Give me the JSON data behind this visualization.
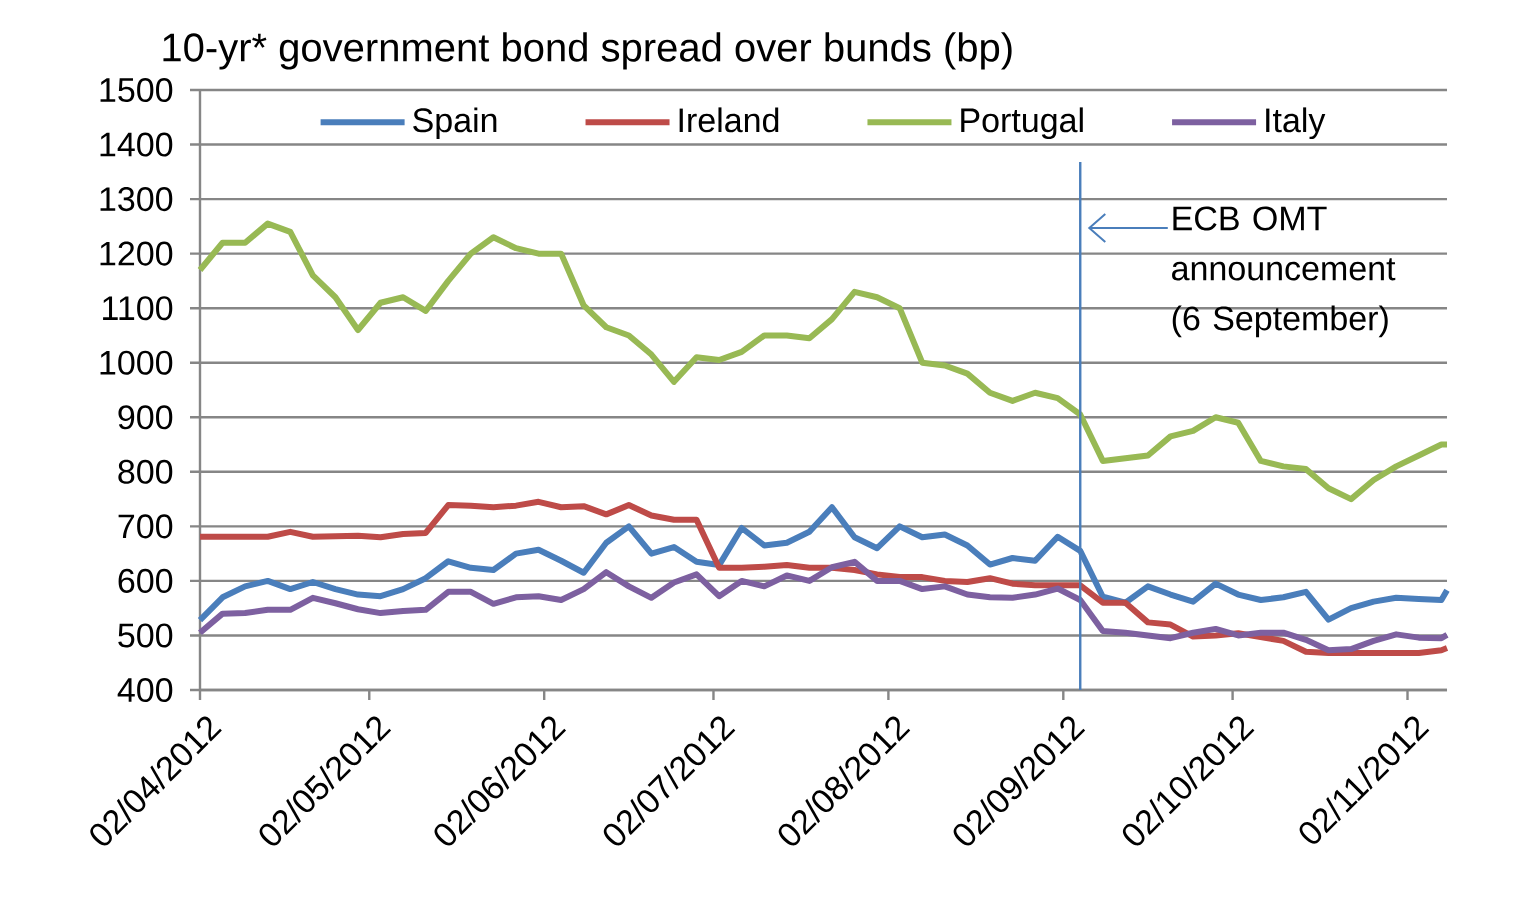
{
  "chart_data": {
    "type": "line",
    "title": "10-yr* government bond spread over bunds (bp)",
    "x": [
      "2012-04-02",
      "2012-04-06",
      "2012-04-10",
      "2012-04-14",
      "2012-04-18",
      "2012-04-22",
      "2012-04-26",
      "2012-04-30",
      "2012-05-04",
      "2012-05-08",
      "2012-05-12",
      "2012-05-16",
      "2012-05-20",
      "2012-05-24",
      "2012-05-28",
      "2012-06-01",
      "2012-06-05",
      "2012-06-09",
      "2012-06-13",
      "2012-06-17",
      "2012-06-21",
      "2012-06-25",
      "2012-06-29",
      "2012-07-03",
      "2012-07-07",
      "2012-07-11",
      "2012-07-15",
      "2012-07-19",
      "2012-07-23",
      "2012-07-27",
      "2012-07-31",
      "2012-08-04",
      "2012-08-08",
      "2012-08-12",
      "2012-08-16",
      "2012-08-20",
      "2012-08-24",
      "2012-08-28",
      "2012-09-01",
      "2012-09-05",
      "2012-09-09",
      "2012-09-13",
      "2012-09-17",
      "2012-09-21",
      "2012-09-25",
      "2012-09-29",
      "2012-10-03",
      "2012-10-07",
      "2012-10-11",
      "2012-10-15",
      "2012-10-19",
      "2012-10-23",
      "2012-10-27",
      "2012-10-31",
      "2012-11-04",
      "2012-11-08",
      "2012-11-09"
    ],
    "series": [
      {
        "name": "Spain",
        "color": "#4a7ebb",
        "values": [
          528,
          570,
          590,
          600,
          585,
          598,
          585,
          575,
          572,
          585,
          605,
          636,
          624,
          620,
          650,
          657,
          637,
          615,
          670,
          700,
          650,
          662,
          635,
          629,
          697,
          665,
          670,
          690,
          735,
          680,
          660,
          700,
          680,
          685,
          665,
          630,
          642,
          637,
          681,
          655,
          571,
          560,
          590,
          575,
          562,
          595,
          575,
          565,
          570,
          580,
          529,
          550,
          562,
          569,
          567,
          565,
          583
        ]
      },
      {
        "name": "Ireland",
        "color": "#be4b48",
        "values": [
          681,
          681,
          681,
          681,
          690,
          681,
          682,
          683,
          680,
          686,
          688,
          739,
          738,
          735,
          738,
          745,
          735,
          737,
          722,
          739,
          720,
          712,
          712,
          624,
          624,
          626,
          629,
          624,
          624,
          620,
          612,
          607,
          607,
          600,
          598,
          605,
          595,
          592,
          592,
          592,
          560,
          560,
          524,
          520,
          498,
          500,
          504,
          497,
          490,
          470,
          468,
          468,
          468,
          468,
          468,
          473,
          477
        ]
      },
      {
        "name": "Portugal",
        "color": "#98b954",
        "values": [
          1170,
          1220,
          1220,
          1255,
          1240,
          1160,
          1120,
          1060,
          1110,
          1120,
          1095,
          1150,
          1200,
          1230,
          1210,
          1200,
          1200,
          1105,
          1065,
          1050,
          1015,
          965,
          1010,
          1005,
          1020,
          1050,
          1050,
          1045,
          1080,
          1130,
          1120,
          1100,
          1000,
          995,
          980,
          945,
          930,
          945,
          935,
          905,
          820,
          825,
          830,
          865,
          875,
          900,
          890,
          820,
          810,
          805,
          770,
          750,
          785,
          810,
          830,
          850,
          850
        ]
      },
      {
        "name": "Italy",
        "color": "#7d60a0",
        "values": [
          505,
          540,
          541,
          547,
          547,
          569,
          559,
          548,
          541,
          545,
          547,
          580,
          580,
          558,
          570,
          572,
          565,
          585,
          616,
          590,
          569,
          597,
          612,
          572,
          600,
          590,
          610,
          600,
          625,
          635,
          600,
          600,
          585,
          590,
          575,
          570,
          569,
          575,
          586,
          565,
          508,
          505,
          500,
          495,
          505,
          512,
          500,
          505,
          505,
          492,
          473,
          475,
          490,
          502,
          496,
          495,
          501
        ]
      }
    ],
    "xlim": [
      "2012-04-02",
      "2012-11-09"
    ],
    "xticks": [
      {
        "value": "2012-04-02",
        "label": "02/04/2012"
      },
      {
        "value": "2012-05-02",
        "label": "02/05/2012"
      },
      {
        "value": "2012-06-02",
        "label": "02/06/2012"
      },
      {
        "value": "2012-07-02",
        "label": "02/07/2012"
      },
      {
        "value": "2012-08-02",
        "label": "02/08/2012"
      },
      {
        "value": "2012-09-02",
        "label": "02/09/2012"
      },
      {
        "value": "2012-10-02",
        "label": "02/10/2012"
      },
      {
        "value": "2012-11-02",
        "label": "02/11/2012"
      }
    ],
    "ylim": [
      400,
      1500
    ],
    "yticks": [
      400,
      500,
      600,
      700,
      800,
      900,
      1000,
      1100,
      1200,
      1300,
      1400,
      1500
    ],
    "ref_lines": [
      {
        "axis": "x",
        "value": "2012-09-05",
        "label": "ECB OMT announcement (6 September)",
        "color": "#4a7ebb"
      }
    ],
    "grid": "y",
    "legend": "top",
    "marker": "none",
    "line_style": "solid"
  }
}
